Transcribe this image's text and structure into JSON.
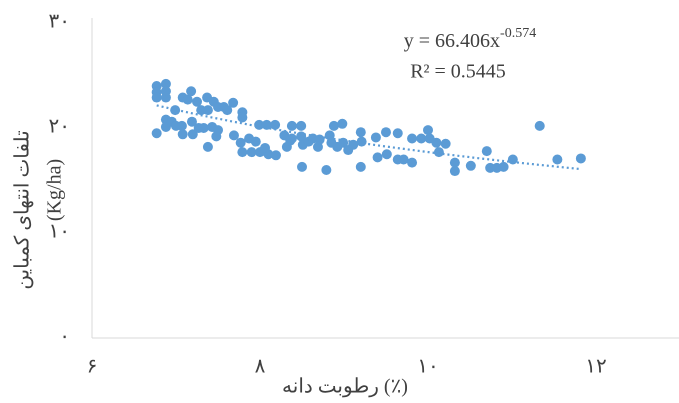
{
  "chart_data": {
    "type": "scatter",
    "x_label": "رطوبت دانه (٪)",
    "y_label": [
      "تلفات انتهای کمباین",
      "(Kg/ha)"
    ],
    "equation": {
      "text": "y = 66.406x",
      "exponent": "-0.574"
    },
    "r2_label": "R² = 0.5445",
    "trendline": {
      "kind": "power",
      "coefficient": 66.406,
      "exponent": -0.574,
      "r2": 0.5445
    },
    "xlim": [
      6,
      13
    ],
    "xticks": [
      {
        "value": 6,
        "label": "۶"
      },
      {
        "value": 8,
        "label": "۸"
      },
      {
        "value": 10,
        "label": "۱۰"
      },
      {
        "value": 12,
        "label": "۱۲"
      }
    ],
    "ylim": [
      0,
      30
    ],
    "yticks": [
      {
        "value": 0,
        "label": "۰"
      },
      {
        "value": 10,
        "label": "۱۰"
      },
      {
        "value": 20,
        "label": "۲۰"
      },
      {
        "value": 30,
        "label": "۳۰"
      }
    ],
    "grid": false,
    "x": [
      6.77,
      6.77,
      6.77,
      6.88,
      6.88,
      6.88,
      6.77,
      6.88,
      6.88,
      6.95,
      6.99,
      7.0,
      7.07,
      7.08,
      7.08,
      7.14,
      7.18,
      7.19,
      7.2,
      7.25,
      7.27,
      7.3,
      7.33,
      7.37,
      7.38,
      7.38,
      7.43,
      7.45,
      7.48,
      7.5,
      7.5,
      7.57,
      7.61,
      7.68,
      7.69,
      7.79,
      7.79,
      7.77,
      7.79,
      7.87,
      7.9,
      7.95,
      7.99,
      8.0,
      8.08,
      8.1,
      8.18,
      8.19,
      8.29,
      8.32,
      8.38,
      8.38,
      8.49,
      8.49,
      8.5,
      8.51,
      8.58,
      8.63,
      8.69,
      8.79,
      8.85,
      8.88,
      8.92,
      8.98,
      8.99,
      9.05,
      9.11,
      9.2,
      9.2,
      9.21,
      9.38,
      9.4,
      9.5,
      9.51,
      9.64,
      9.64,
      9.71,
      9.81,
      9.81,
      9.92,
      10.0,
      10.02,
      10.1,
      10.13,
      10.21,
      10.32,
      10.32,
      10.51,
      10.7,
      10.74,
      10.82,
      10.9,
      11.01,
      11.33,
      11.54,
      11.82,
      8.83,
      8.71,
      8.36,
      8.06
    ],
    "series": [
      {
        "color": "#5b9bd5",
        "values": [
          24.0,
          23.4,
          22.9,
          24.2,
          23.5,
          22.9,
          19.5,
          20.8,
          20.1,
          20.6,
          21.7,
          20.2,
          20.2,
          22.9,
          19.4,
          22.7,
          23.5,
          20.6,
          19.4,
          22.5,
          20.0,
          21.7,
          20.0,
          22.9,
          18.2,
          21.7,
          20.1,
          22.5,
          19.2,
          22.0,
          19.8,
          22.0,
          21.7,
          22.4,
          19.3,
          21.5,
          21.0,
          18.6,
          17.7,
          19.0,
          17.7,
          18.7,
          20.3,
          17.7,
          20.3,
          17.5,
          20.3,
          17.4,
          19.3,
          18.2,
          20.2,
          19.0,
          20.2,
          19.2,
          16.3,
          18.4,
          18.7,
          19.0,
          18.2,
          16.0,
          18.6,
          20.2,
          18.2,
          20.4,
          18.6,
          17.9,
          18.4,
          16.3,
          19.6,
          18.7,
          19.1,
          17.2,
          19.6,
          17.5,
          19.5,
          17.0,
          17.0,
          19.0,
          16.7,
          19.0,
          19.8,
          19.0,
          18.6,
          17.7,
          18.5,
          16.7,
          15.9,
          16.4,
          17.8,
          16.2,
          16.2,
          16.3,
          17.0,
          20.2,
          17.0,
          17.1,
          19.3,
          18.9,
          18.8,
          18.1
        ]
      }
    ]
  }
}
